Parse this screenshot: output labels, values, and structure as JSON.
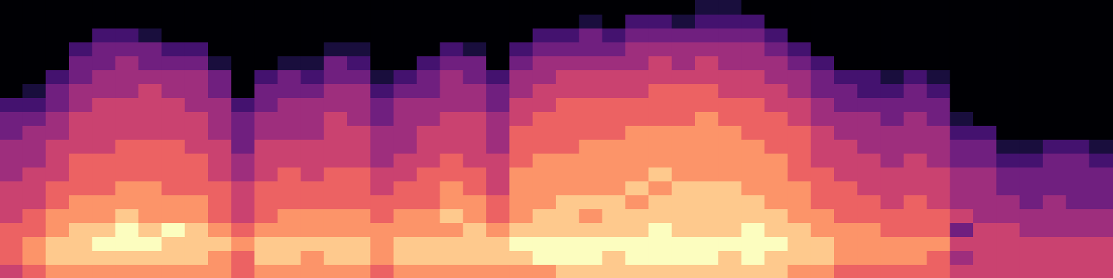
{
  "chart_data": {
    "type": "heatmap",
    "color": "magma",
    "tick_labels": false,
    "grid": false,
    "zlim": [
      0,
      9
    ],
    "cells": [
      [
        0,
        0,
        0,
        0,
        0,
        0,
        0,
        2,
        3,
        3,
        4,
        4,
        4,
        5,
        5,
        5,
        6,
        6,
        6,
        5
      ],
      [
        0,
        0,
        0,
        0,
        0,
        0,
        1,
        2,
        3,
        4,
        4,
        4,
        5,
        5,
        5,
        6,
        6,
        7,
        7,
        6
      ],
      [
        0,
        0,
        0,
        0,
        0,
        2,
        3,
        3,
        4,
        4,
        5,
        5,
        5,
        6,
        6,
        7,
        7,
        8,
        8,
        7
      ],
      [
        0,
        0,
        0,
        2,
        3,
        3,
        4,
        4,
        5,
        5,
        5,
        6,
        6,
        6,
        7,
        7,
        8,
        8,
        8,
        7
      ],
      [
        0,
        0,
        2,
        3,
        3,
        4,
        4,
        5,
        5,
        5,
        5,
        6,
        6,
        6,
        7,
        7,
        8,
        9,
        8,
        7
      ],
      [
        0,
        0,
        2,
        3,
        4,
        4,
        4,
        5,
        5,
        5,
        6,
        6,
        6,
        7,
        7,
        8,
        9,
        9,
        8,
        7
      ],
      [
        0,
        0,
        1,
        3,
        3,
        4,
        5,
        5,
        5,
        5,
        6,
        6,
        6,
        7,
        7,
        7,
        8,
        9,
        8,
        7
      ],
      [
        0,
        0,
        0,
        2,
        3,
        4,
        4,
        5,
        5,
        5,
        6,
        6,
        6,
        6,
        7,
        7,
        9,
        8,
        8,
        7
      ],
      [
        0,
        0,
        0,
        2,
        3,
        4,
        4,
        4,
        5,
        5,
        5,
        6,
        6,
        6,
        7,
        7,
        8,
        8,
        8,
        7
      ],
      [
        0,
        0,
        0,
        0,
        1,
        3,
        3,
        4,
        4,
        4,
        5,
        5,
        5,
        6,
        6,
        6,
        7,
        8,
        7,
        7
      ],
      [
        0,
        0,
        0,
        0,
        0,
        0,
        0,
        2,
        3,
        3,
        3,
        4,
        4,
        5,
        5,
        5,
        6,
        7,
        6,
        6
      ],
      [
        0,
        0,
        0,
        0,
        0,
        2,
        3,
        3,
        4,
        4,
        5,
        5,
        5,
        6,
        6,
        6,
        7,
        8,
        8,
        7
      ],
      [
        0,
        0,
        0,
        0,
        1,
        3,
        3,
        4,
        4,
        4,
        5,
        5,
        6,
        6,
        6,
        7,
        7,
        8,
        8,
        7
      ],
      [
        0,
        0,
        0,
        0,
        1,
        2,
        3,
        4,
        4,
        4,
        5,
        5,
        5,
        6,
        6,
        7,
        7,
        8,
        7,
        7
      ],
      [
        0,
        0,
        0,
        1,
        3,
        3,
        4,
        4,
        5,
        5,
        5,
        5,
        6,
        6,
        6,
        7,
        7,
        8,
        8,
        7
      ],
      [
        0,
        0,
        0,
        1,
        2,
        3,
        4,
        4,
        4,
        5,
        5,
        5,
        6,
        6,
        6,
        7,
        7,
        8,
        8,
        7
      ],
      [
        0,
        0,
        0,
        0,
        0,
        1,
        2,
        3,
        3,
        4,
        4,
        4,
        5,
        5,
        6,
        6,
        7,
        7,
        7,
        6
      ],
      [
        0,
        0,
        0,
        0,
        0,
        2,
        3,
        4,
        4,
        4,
        4,
        5,
        5,
        6,
        6,
        7,
        7,
        8,
        8,
        7
      ],
      [
        0,
        0,
        0,
        0,
        2,
        3,
        3,
        4,
        4,
        5,
        5,
        5,
        6,
        6,
        6,
        7,
        7,
        8,
        8,
        7
      ],
      [
        0,
        0,
        0,
        2,
        3,
        4,
        4,
        4,
        5,
        5,
        5,
        6,
        6,
        7,
        7,
        8,
        7,
        8,
        8,
        7
      ],
      [
        0,
        0,
        0,
        1,
        3,
        3,
        4,
        4,
        5,
        5,
        5,
        5,
        6,
        6,
        7,
        7,
        8,
        8,
        8,
        7
      ],
      [
        0,
        0,
        0,
        0,
        0,
        2,
        3,
        3,
        4,
        4,
        4,
        5,
        5,
        5,
        6,
        6,
        7,
        8,
        8,
        7
      ],
      [
        0,
        0,
        0,
        2,
        3,
        4,
        4,
        5,
        5,
        6,
        6,
        6,
        7,
        7,
        7,
        7,
        8,
        9,
        8,
        7
      ],
      [
        0,
        0,
        2,
        3,
        4,
        4,
        5,
        5,
        6,
        6,
        6,
        7,
        7,
        7,
        7,
        8,
        8,
        9,
        9,
        7
      ],
      [
        0,
        0,
        2,
        3,
        4,
        5,
        5,
        6,
        6,
        6,
        6,
        7,
        7,
        7,
        8,
        8,
        8,
        9,
        9,
        8
      ],
      [
        0,
        1,
        3,
        3,
        4,
        5,
        5,
        6,
        6,
        6,
        7,
        7,
        7,
        7,
        8,
        7,
        8,
        9,
        9,
        8
      ],
      [
        0,
        0,
        2,
        3,
        4,
        5,
        5,
        6,
        6,
        6,
        7,
        7,
        7,
        7,
        8,
        8,
        8,
        9,
        8,
        8
      ],
      [
        0,
        2,
        3,
        4,
        4,
        5,
        5,
        6,
        6,
        7,
        7,
        7,
        7,
        8,
        7,
        8,
        8,
        9,
        9,
        8
      ],
      [
        0,
        2,
        3,
        4,
        5,
        5,
        6,
        6,
        6,
        7,
        7,
        7,
        8,
        7,
        8,
        8,
        9,
        9,
        9,
        8
      ],
      [
        0,
        1,
        3,
        4,
        4,
        5,
        6,
        6,
        6,
        7,
        7,
        7,
        7,
        8,
        8,
        8,
        8,
        9,
        9,
        8
      ],
      [
        1,
        2,
        3,
        4,
        5,
        5,
        6,
        6,
        7,
        7,
        7,
        7,
        7,
        8,
        8,
        8,
        8,
        9,
        9,
        8
      ],
      [
        1,
        2,
        3,
        4,
        4,
        5,
        5,
        6,
        6,
        7,
        7,
        7,
        7,
        8,
        8,
        8,
        8,
        9,
        8,
        8
      ],
      [
        0,
        2,
        3,
        4,
        4,
        5,
        5,
        6,
        6,
        6,
        7,
        7,
        7,
        7,
        8,
        8,
        9,
        9,
        9,
        8
      ],
      [
        0,
        0,
        2,
        3,
        4,
        4,
        5,
        5,
        6,
        6,
        6,
        7,
        7,
        7,
        7,
        8,
        8,
        9,
        8,
        8
      ],
      [
        0,
        0,
        0,
        2,
        3,
        4,
        4,
        5,
        5,
        6,
        6,
        6,
        6,
        7,
        7,
        7,
        8,
        8,
        8,
        7
      ],
      [
        0,
        0,
        0,
        0,
        2,
        3,
        3,
        4,
        4,
        5,
        5,
        5,
        6,
        6,
        6,
        7,
        7,
        8,
        8,
        7
      ],
      [
        0,
        0,
        0,
        0,
        0,
        2,
        3,
        3,
        4,
        4,
        5,
        5,
        5,
        6,
        6,
        6,
        7,
        7,
        7,
        6
      ],
      [
        0,
        0,
        0,
        0,
        0,
        2,
        2,
        3,
        4,
        4,
        4,
        5,
        5,
        5,
        6,
        6,
        7,
        7,
        7,
        6
      ],
      [
        0,
        0,
        0,
        0,
        0,
        1,
        2,
        3,
        3,
        4,
        4,
        4,
        5,
        5,
        5,
        6,
        6,
        7,
        7,
        6
      ],
      [
        0,
        0,
        0,
        0,
        0,
        2,
        3,
        3,
        4,
        4,
        4,
        5,
        5,
        5,
        6,
        6,
        6,
        7,
        7,
        6
      ],
      [
        0,
        0,
        0,
        0,
        0,
        1,
        2,
        3,
        3,
        4,
        4,
        4,
        5,
        5,
        5,
        6,
        6,
        7,
        6,
        6
      ],
      [
        0,
        0,
        0,
        0,
        0,
        0,
        0,
        0,
        1,
        2,
        3,
        3,
        4,
        4,
        4,
        5,
        3,
        5,
        4,
        5
      ],
      [
        0,
        0,
        0,
        0,
        0,
        0,
        0,
        0,
        0,
        2,
        3,
        3,
        4,
        4,
        4,
        4,
        5,
        5,
        5,
        5
      ],
      [
        0,
        0,
        0,
        0,
        0,
        0,
        0,
        0,
        0,
        0,
        1,
        2,
        3,
        3,
        4,
        4,
        5,
        5,
        5,
        5
      ],
      [
        0,
        0,
        0,
        0,
        0,
        0,
        0,
        0,
        0,
        0,
        1,
        2,
        3,
        3,
        3,
        4,
        4,
        5,
        5,
        5
      ],
      [
        0,
        0,
        0,
        0,
        0,
        0,
        0,
        0,
        0,
        0,
        2,
        3,
        3,
        3,
        4,
        4,
        4,
        5,
        5,
        5
      ],
      [
        0,
        0,
        0,
        0,
        0,
        0,
        0,
        0,
        0,
        0,
        2,
        3,
        3,
        3,
        3,
        4,
        4,
        5,
        5,
        5
      ],
      [
        0,
        0,
        0,
        0,
        0,
        0,
        0,
        0,
        0,
        0,
        1,
        2,
        3,
        3,
        3,
        4,
        4,
        5,
        5,
        5
      ]
    ]
  }
}
